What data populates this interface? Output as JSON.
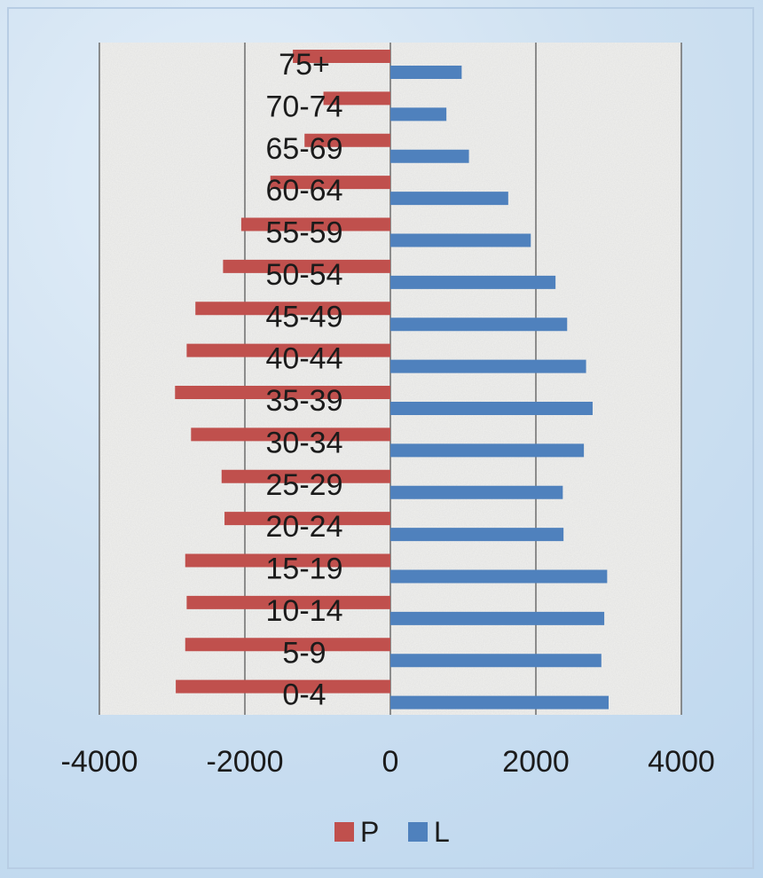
{
  "chart_data": {
    "type": "bar",
    "orientation": "horizontal",
    "categories": [
      "0-4",
      "5-9",
      "10-14",
      "15-19",
      "20-24",
      "25-29",
      "30-34",
      "35-39",
      "40-44",
      "45-49",
      "50-54",
      "55-59",
      "60-64",
      "65-69",
      "70-74",
      "75+"
    ],
    "series": [
      {
        "name": "P",
        "color": "#c0504d",
        "values": [
          -2950,
          -2820,
          -2800,
          -2820,
          -2280,
          -2320,
          -2740,
          -2960,
          -2800,
          -2680,
          -2300,
          -2050,
          -1650,
          -1180,
          -920,
          -1340
        ]
      },
      {
        "name": "L",
        "color": "#4f81bd",
        "values": [
          3000,
          2900,
          2940,
          2980,
          2380,
          2370,
          2660,
          2780,
          2690,
          2430,
          2270,
          1930,
          1620,
          1080,
          770,
          980
        ]
      }
    ],
    "xlim": [
      -4000,
      4000
    ],
    "xticks": [
      "-4000",
      "-2000",
      "0",
      "2000",
      "4000"
    ],
    "grid": true,
    "legend_position": "bottom"
  }
}
